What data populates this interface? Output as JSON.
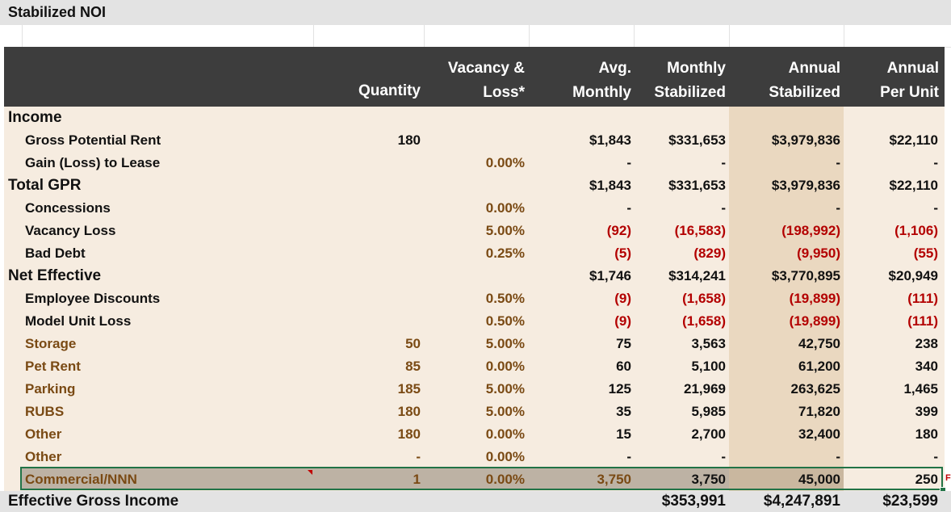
{
  "title": "Stabilized NOI",
  "header": {
    "quantity": "Quantity",
    "vacancy_l1": "Vacancy &",
    "vacancy_l2": "Loss*",
    "avg_l1": "Avg.",
    "avg_l2": "Monthly",
    "monthly_l1": "Monthly",
    "monthly_l2": "Stabilized",
    "annual_l1": "Annual",
    "annual_l2": "Stabilized",
    "perunit_l1": "Annual",
    "perunit_l2": "Per Unit"
  },
  "colors": {
    "header_bg": "#3d3d3d",
    "body_bg": "#f6ece0",
    "annual_col_bg": "#ead8c0",
    "negative_text": "#b30000",
    "other_income_text": "#7a4a14",
    "selection_border": "#217346"
  },
  "rows": [
    {
      "label": "Income",
      "style": "main",
      "qty": "",
      "vac": "",
      "avg": "",
      "monthly": "",
      "annual": "",
      "perunit": ""
    },
    {
      "label": "Gross Potential Rent",
      "style": "sub",
      "qty": "180",
      "vac": "",
      "avg": "$1,843",
      "monthly": "$331,653",
      "annual": "$3,979,836",
      "perunit": "$22,110"
    },
    {
      "label": "Gain (Loss) to Lease",
      "style": "sub",
      "qty": "",
      "vac": "0.00%",
      "avg": "-",
      "monthly": "-",
      "annual": "-",
      "perunit": "-"
    },
    {
      "label": "Total GPR",
      "style": "main",
      "qty": "",
      "vac": "",
      "avg": "$1,843",
      "monthly": "$331,653",
      "annual": "$3,979,836",
      "perunit": "$22,110"
    },
    {
      "label": "Concessions",
      "style": "sub",
      "qty": "",
      "vac": "0.00%",
      "avg": "-",
      "monthly": "-",
      "annual": "-",
      "perunit": "-"
    },
    {
      "label": "Vacancy Loss",
      "style": "sub",
      "qty": "",
      "vac": "5.00%",
      "avg": "(92)",
      "monthly": "(16,583)",
      "annual": "(198,992)",
      "perunit": "(1,106)",
      "neg": true
    },
    {
      "label": "Bad Debt",
      "style": "sub",
      "qty": "",
      "vac": "0.25%",
      "avg": "(5)",
      "monthly": "(829)",
      "annual": "(9,950)",
      "perunit": "(55)",
      "neg": true
    },
    {
      "label": "Net Effective",
      "style": "main",
      "qty": "",
      "vac": "",
      "avg": "$1,746",
      "monthly": "$314,241",
      "annual": "$3,770,895",
      "perunit": "$20,949"
    },
    {
      "label": "Employee Discounts",
      "style": "sub",
      "qty": "",
      "vac": "0.50%",
      "avg": "(9)",
      "monthly": "(1,658)",
      "annual": "(19,899)",
      "perunit": "(111)",
      "neg": true
    },
    {
      "label": "Model Unit Loss",
      "style": "sub",
      "qty": "",
      "vac": "0.50%",
      "avg": "(9)",
      "monthly": "(1,658)",
      "annual": "(19,899)",
      "perunit": "(111)",
      "neg": true
    },
    {
      "label": "Storage",
      "style": "other",
      "qty": "50",
      "vac": "5.00%",
      "avg": "75",
      "monthly": "3,563",
      "annual": "42,750",
      "perunit": "238"
    },
    {
      "label": "Pet Rent",
      "style": "other",
      "qty": "85",
      "vac": "0.00%",
      "avg": "60",
      "monthly": "5,100",
      "annual": "61,200",
      "perunit": "340"
    },
    {
      "label": "Parking",
      "style": "other",
      "qty": "185",
      "vac": "5.00%",
      "avg": "125",
      "monthly": "21,969",
      "annual": "263,625",
      "perunit": "1,465"
    },
    {
      "label": "RUBS",
      "style": "other",
      "qty": "180",
      "vac": "5.00%",
      "avg": "35",
      "monthly": "5,985",
      "annual": "71,820",
      "perunit": "399"
    },
    {
      "label": "Other",
      "style": "other",
      "qty": "180",
      "vac": "0.00%",
      "avg": "15",
      "monthly": "2,700",
      "annual": "32,400",
      "perunit": "180"
    },
    {
      "label": "Other",
      "style": "other",
      "qty": "-",
      "vac": "0.00%",
      "avg": "-",
      "monthly": "-",
      "annual": "-",
      "perunit": "-"
    },
    {
      "label": "Commercial/NNN",
      "style": "other",
      "qty": "1",
      "vac": "0.00%",
      "avg": "3,750",
      "monthly": "3,750",
      "annual": "45,000",
      "perunit": "250",
      "selected": true
    }
  ],
  "footer": {
    "label": "Effective Gross Income",
    "monthly": "$353,991",
    "annual": "$4,247,891",
    "perunit": "$23,599"
  },
  "edge_glyph": "F"
}
